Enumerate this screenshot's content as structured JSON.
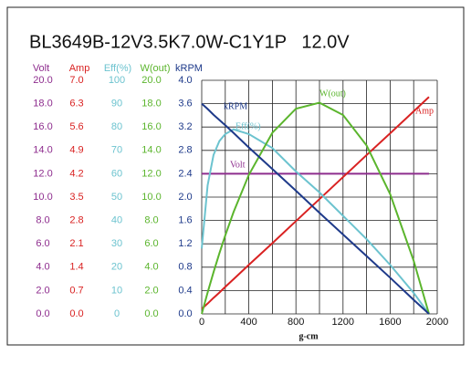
{
  "chart_data": {
    "type": "line",
    "title": "BL3649B-12V3.5K7.0W-C1Y1P   12.0V",
    "xlabel": "g-cm",
    "x": [
      0,
      50,
      100,
      150,
      200,
      270,
      400,
      600,
      800,
      1000,
      1200,
      1400,
      1600,
      1800,
      1930
    ],
    "xlim": [
      0,
      2000
    ],
    "xticks": [
      0,
      400,
      800,
      1200,
      1600,
      2000
    ],
    "xgrid": [
      0,
      200,
      400,
      600,
      800,
      1000,
      1200,
      1400,
      1600,
      1800,
      2000
    ],
    "grid": true,
    "series": [
      {
        "name": "Volt",
        "color": "#8e2d8e",
        "ylim": [
          0,
          20
        ],
        "yticks": [
          {
            "value": 20,
            "label": "20.0"
          },
          {
            "value": 18,
            "label": "18.0"
          },
          {
            "value": 16,
            "label": "16.0"
          },
          {
            "value": 14,
            "label": "14.0"
          },
          {
            "value": 12,
            "label": "12.0"
          },
          {
            "value": 10,
            "label": "10.0"
          },
          {
            "value": 8,
            "label": "8.0"
          },
          {
            "value": 6,
            "label": "6.0"
          },
          {
            "value": 4,
            "label": "4.0"
          },
          {
            "value": 2,
            "label": "2.0"
          },
          {
            "value": 0,
            "label": "0.0"
          }
        ],
        "values": [
          12,
          12,
          12,
          12,
          12,
          12,
          12,
          12,
          12,
          12,
          12,
          12,
          12,
          12,
          12
        ]
      },
      {
        "name": "Amp",
        "color": "#d92222",
        "ylim": [
          0,
          7
        ],
        "yticks": [
          {
            "value": 7,
            "label": "7.0"
          },
          {
            "value": 6.3,
            "label": "6.3"
          },
          {
            "value": 5.6,
            "label": "5.6"
          },
          {
            "value": 4.9,
            "label": "4.9"
          },
          {
            "value": 4.2,
            "label": "4.2"
          },
          {
            "value": 3.5,
            "label": "3.5"
          },
          {
            "value": 2.8,
            "label": "2.8"
          },
          {
            "value": 2.1,
            "label": "2.1"
          },
          {
            "value": 1.4,
            "label": "1.4"
          },
          {
            "value": 0.7,
            "label": "0.7"
          },
          {
            "value": 0,
            "label": "0.0"
          }
        ],
        "values": [
          0.15,
          0.31,
          0.48,
          0.64,
          0.81,
          1.04,
          1.47,
          2.12,
          2.78,
          3.44,
          4.1,
          4.76,
          5.41,
          6.07,
          6.5
        ]
      },
      {
        "name": "Eff(%)",
        "color": "#6cc3cf",
        "ylim": [
          0,
          100
        ],
        "yticks": [
          100,
          90,
          80,
          70,
          60,
          50,
          40,
          30,
          20,
          10,
          0
        ],
        "values": [
          28,
          55,
          68,
          74,
          77,
          79,
          77,
          71,
          61,
          52,
          42,
          32,
          21,
          9,
          0
        ]
      },
      {
        "name": "W(out)",
        "color": "#5bb52d",
        "ylim": [
          0,
          20
        ],
        "yticks": [
          {
            "value": 20,
            "label": "20.0"
          },
          {
            "value": 18,
            "label": "18.0"
          },
          {
            "value": 16,
            "label": "16.0"
          },
          {
            "value": 14,
            "label": "14.0"
          },
          {
            "value": 12,
            "label": "12.0"
          },
          {
            "value": 10,
            "label": "10.0"
          },
          {
            "value": 8,
            "label": "8.0"
          },
          {
            "value": 6,
            "label": "6.0"
          },
          {
            "value": 4,
            "label": "4.0"
          },
          {
            "value": 2,
            "label": "2.0"
          },
          {
            "value": 0,
            "label": "0.0"
          }
        ],
        "values": [
          0,
          1.83,
          3.56,
          5.19,
          6.72,
          8.71,
          11.9,
          15.51,
          17.57,
          18.08,
          17.03,
          14.42,
          10.26,
          4.55,
          0
        ]
      },
      {
        "name": "kRPM",
        "color": "#1e3a8a",
        "ylim": [
          0,
          4
        ],
        "yticks": [
          {
            "value": 4,
            "label": "4.0"
          },
          {
            "value": 3.6,
            "label": "3.6"
          },
          {
            "value": 3.2,
            "label": "3.2"
          },
          {
            "value": 2.8,
            "label": "2.8"
          },
          {
            "value": 2.4,
            "label": "2.4"
          },
          {
            "value": 2,
            "label": "2.0"
          },
          {
            "value": 1.6,
            "label": "1.6"
          },
          {
            "value": 1.2,
            "label": "1.2"
          },
          {
            "value": 0.8,
            "label": "0.8"
          },
          {
            "value": 0.4,
            "label": "0.4"
          },
          {
            "value": 0,
            "label": "0.0"
          }
        ],
        "values": [
          3.6,
          3.51,
          3.41,
          3.32,
          3.23,
          3.1,
          2.85,
          2.48,
          2.11,
          1.73,
          1.36,
          0.99,
          0.62,
          0.24,
          0
        ]
      }
    ]
  }
}
